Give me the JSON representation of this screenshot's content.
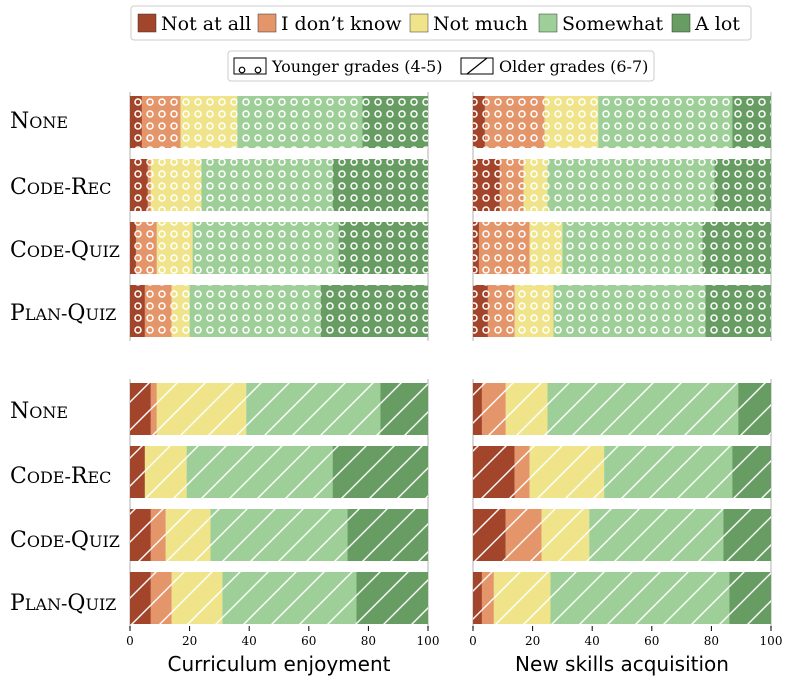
{
  "chart_data": {
    "type": "bar",
    "orientation": "horizontal-stacked",
    "legend_levels": [
      {
        "label": "Not at all",
        "color": "#a3452a"
      },
      {
        "label": "I don’t know",
        "color": "#e4956a"
      },
      {
        "label": "Not much",
        "color": "#efe48a"
      },
      {
        "label": "Somewhat",
        "color": "#9fcf98"
      },
      {
        "label": "A lot",
        "color": "#679c62"
      }
    ],
    "legend_groups": [
      {
        "label": "Younger grades (4-5)",
        "pattern": "circles"
      },
      {
        "label": "Older grades (6-7)",
        "pattern": "diagonal"
      }
    ],
    "conditions": [
      "None",
      "Code-Rec",
      "Code-Quiz",
      "Plan-Quiz"
    ],
    "xlim": [
      0,
      100
    ],
    "xticks": [
      "0",
      "20",
      "40",
      "60",
      "80",
      "100"
    ],
    "panels": [
      {
        "group": "Younger grades (4-5)",
        "metric": "Curriculum enjoyment",
        "values": [
          [
            4,
            13,
            19,
            42,
            22
          ],
          [
            6,
            1,
            17,
            44,
            32
          ],
          [
            2,
            7,
            12,
            49,
            30
          ],
          [
            5,
            9,
            6,
            44,
            36
          ]
        ]
      },
      {
        "group": "Younger grades (4-5)",
        "metric": "New skills acquisition",
        "values": [
          [
            4,
            20,
            18,
            45,
            13
          ],
          [
            9,
            8,
            8,
            56,
            19
          ],
          [
            2,
            17,
            11,
            47,
            23
          ],
          [
            5,
            9,
            13,
            51,
            22
          ]
        ]
      },
      {
        "group": "Older grades (6-7)",
        "metric": "Curriculum enjoyment",
        "values": [
          [
            7,
            2,
            30,
            45,
            16
          ],
          [
            5,
            0,
            14,
            49,
            32
          ],
          [
            7,
            5,
            15,
            46,
            27
          ],
          [
            7,
            7,
            17,
            45,
            24
          ]
        ]
      },
      {
        "group": "Older grades (6-7)",
        "metric": "New skills acquisition",
        "values": [
          [
            3,
            8,
            14,
            64,
            11
          ],
          [
            14,
            5,
            25,
            43,
            13
          ],
          [
            11,
            12,
            16,
            45,
            16
          ],
          [
            3,
            4,
            19,
            60,
            14
          ]
        ]
      }
    ],
    "xlabels": [
      "Curriculum enjoyment",
      "New skills acquisition"
    ]
  }
}
